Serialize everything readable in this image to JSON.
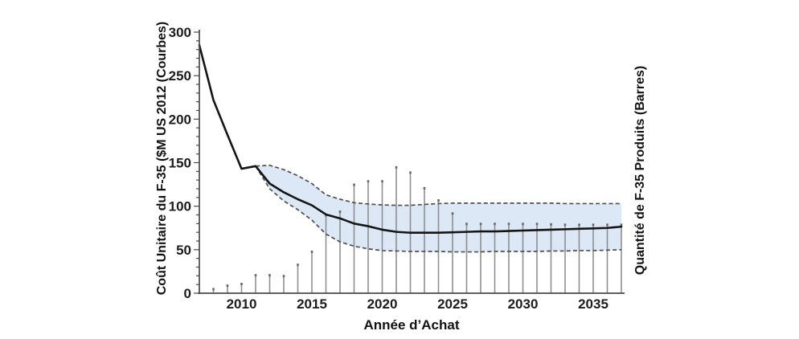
{
  "figure": {
    "left_axis_title": "Coût Unitaire du F-35 ($M US 2012 (Courbes)",
    "right_axis_title": "Quantité de F-35 Produits (Barres)",
    "x_axis_title": "Année d’Achat"
  },
  "chart_data": {
    "type": "line",
    "title": "",
    "xlabel": "Année d’Achat",
    "ylabel_left": "Coût Unitaire du F-35 ($M US 2012 (Courbes)",
    "ylabel_right": "Quantité de F-35 Produits (Barres)",
    "grid": false,
    "legend": "none",
    "x_axis": {
      "min": 2007,
      "max": 2037.7,
      "tick_values": [
        2010,
        2015,
        2020,
        2025,
        2030,
        2035
      ]
    },
    "y_axis_left": {
      "min": 0,
      "max": 300,
      "major_tick_step": 50,
      "minor_tick_step": 10,
      "tick_values": [
        0,
        50,
        100,
        150,
        200,
        250,
        300
      ]
    },
    "y_axis_right": {
      "unlabeled": true,
      "note": "no numeric ticks shown; bar heights below are expressed in left-axis pixel-equivalent units"
    },
    "series": [
      {
        "name": "cout-unitaire-ligne",
        "type": "line",
        "style": "solid-black",
        "start_year": 2007,
        "values": [
          285,
          222,
          182,
          143,
          146,
          126,
          116,
          108,
          101,
          90.5,
          86,
          80,
          77,
          73,
          70.5,
          69.5,
          69.5,
          69.5,
          70,
          70.5,
          71,
          71,
          71.5,
          72,
          72.5,
          73,
          73.5,
          74,
          74.5,
          75,
          76.5
        ]
      },
      {
        "name": "borne-superieure",
        "type": "line",
        "style": "dashed-gray",
        "start_year": 2011,
        "values": [
          146,
          147,
          142,
          135,
          126,
          113,
          108,
          104,
          102.5,
          101.5,
          101,
          101,
          102,
          103,
          103.5,
          103.5,
          103.5,
          103.5,
          103.5,
          103.5,
          103.5,
          103.5,
          103,
          103,
          103,
          103,
          103
        ]
      },
      {
        "name": "borne-inferieure",
        "type": "line",
        "style": "dashed-gray",
        "start_year": 2011,
        "values": [
          146,
          120,
          106,
          96,
          84,
          68,
          59,
          54,
          51,
          49,
          48.5,
          48,
          48,
          48,
          47.5,
          47.5,
          47.5,
          48,
          48,
          48,
          48,
          48.5,
          48.5,
          49,
          49,
          49.5,
          50
        ]
      },
      {
        "name": "quantite-produite-barres",
        "type": "bar",
        "axis": "right",
        "start_year": 2008,
        "values": [
          6,
          10,
          12,
          22,
          22,
          21,
          34,
          49,
          91,
          95,
          126,
          130,
          130,
          146,
          140,
          122,
          108,
          93,
          81,
          81,
          81,
          81,
          81,
          81,
          80.5,
          80,
          80,
          80,
          80,
          80
        ]
      }
    ],
    "colors": {
      "line": "#151515",
      "band_fill": "#dce8f5",
      "band_edge": "#4f4f4f",
      "bars": "#8f8f8f",
      "bar_caps": "#696969",
      "axis": "#4a4a4a",
      "text": "#1c1c1c"
    }
  }
}
